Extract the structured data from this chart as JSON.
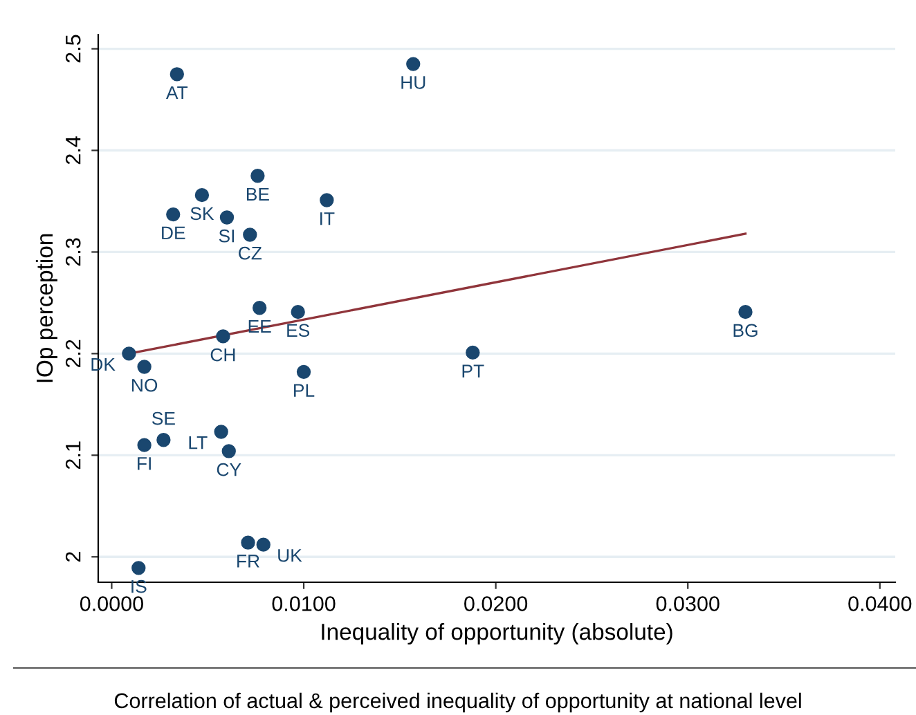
{
  "chart_data": {
    "type": "scatter",
    "xlabel": "Inequality of opportunity (absolute)",
    "ylabel": "IOp perception",
    "annotations": [
      "Correlation of actual & perceived inequality of opportunity at national level"
    ],
    "series": [
      {
        "color": "#1a476f",
        "marker": "circle",
        "x": [
          0.0034,
          0.0157,
          0.0076,
          0.0047,
          0.0112,
          0.0032,
          0.006,
          0.0072,
          0.0077,
          0.0097,
          0.0058,
          0.0009,
          0.0017,
          0.01,
          0.0188,
          0.033,
          0.0057,
          0.0027,
          0.0017,
          0.0061,
          0.0071,
          0.0079,
          0.0014
        ],
        "values": [
          2.475,
          2.485,
          2.375,
          2.356,
          2.351,
          2.337,
          2.334,
          2.317,
          2.245,
          2.241,
          2.217,
          2.2,
          2.187,
          2.182,
          2.201,
          2.241,
          2.123,
          2.115,
          2.11,
          2.104,
          2.014,
          2.012,
          1.989
        ],
        "value_labels": [
          "AT",
          "HU",
          "BE",
          "SK",
          "IT",
          "DE",
          "SI",
          "CZ",
          "EE",
          "ES",
          "CH",
          "DK",
          "NO",
          "PL",
          "PT",
          "BG",
          "LT",
          "SE",
          "FI",
          "CY",
          "FR",
          "UK",
          "IS"
        ]
      },
      {
        "type": "line",
        "color": "#90353b",
        "marker": "none",
        "line_style": "solid",
        "x": [
          0.0009,
          0.033
        ],
        "values": [
          2.2,
          2.318
        ]
      }
    ],
    "xlim": [
      -0.0007,
      0.0408
    ],
    "ylim": [
      1.975,
      2.514
    ],
    "xticks": [
      {
        "value": 0,
        "label": "0.0000"
      },
      {
        "value": 0.01,
        "label": "0.0100"
      },
      {
        "value": 0.02,
        "label": "0.0200"
      },
      {
        "value": 0.03,
        "label": "0.0300"
      },
      {
        "value": 0.04,
        "label": "0.0400"
      }
    ],
    "yticks": [
      {
        "value": 2.0,
        "label": "2"
      },
      2.1,
      2.2,
      2.3,
      2.4,
      2.5
    ],
    "grid": "y",
    "legend": false
  }
}
